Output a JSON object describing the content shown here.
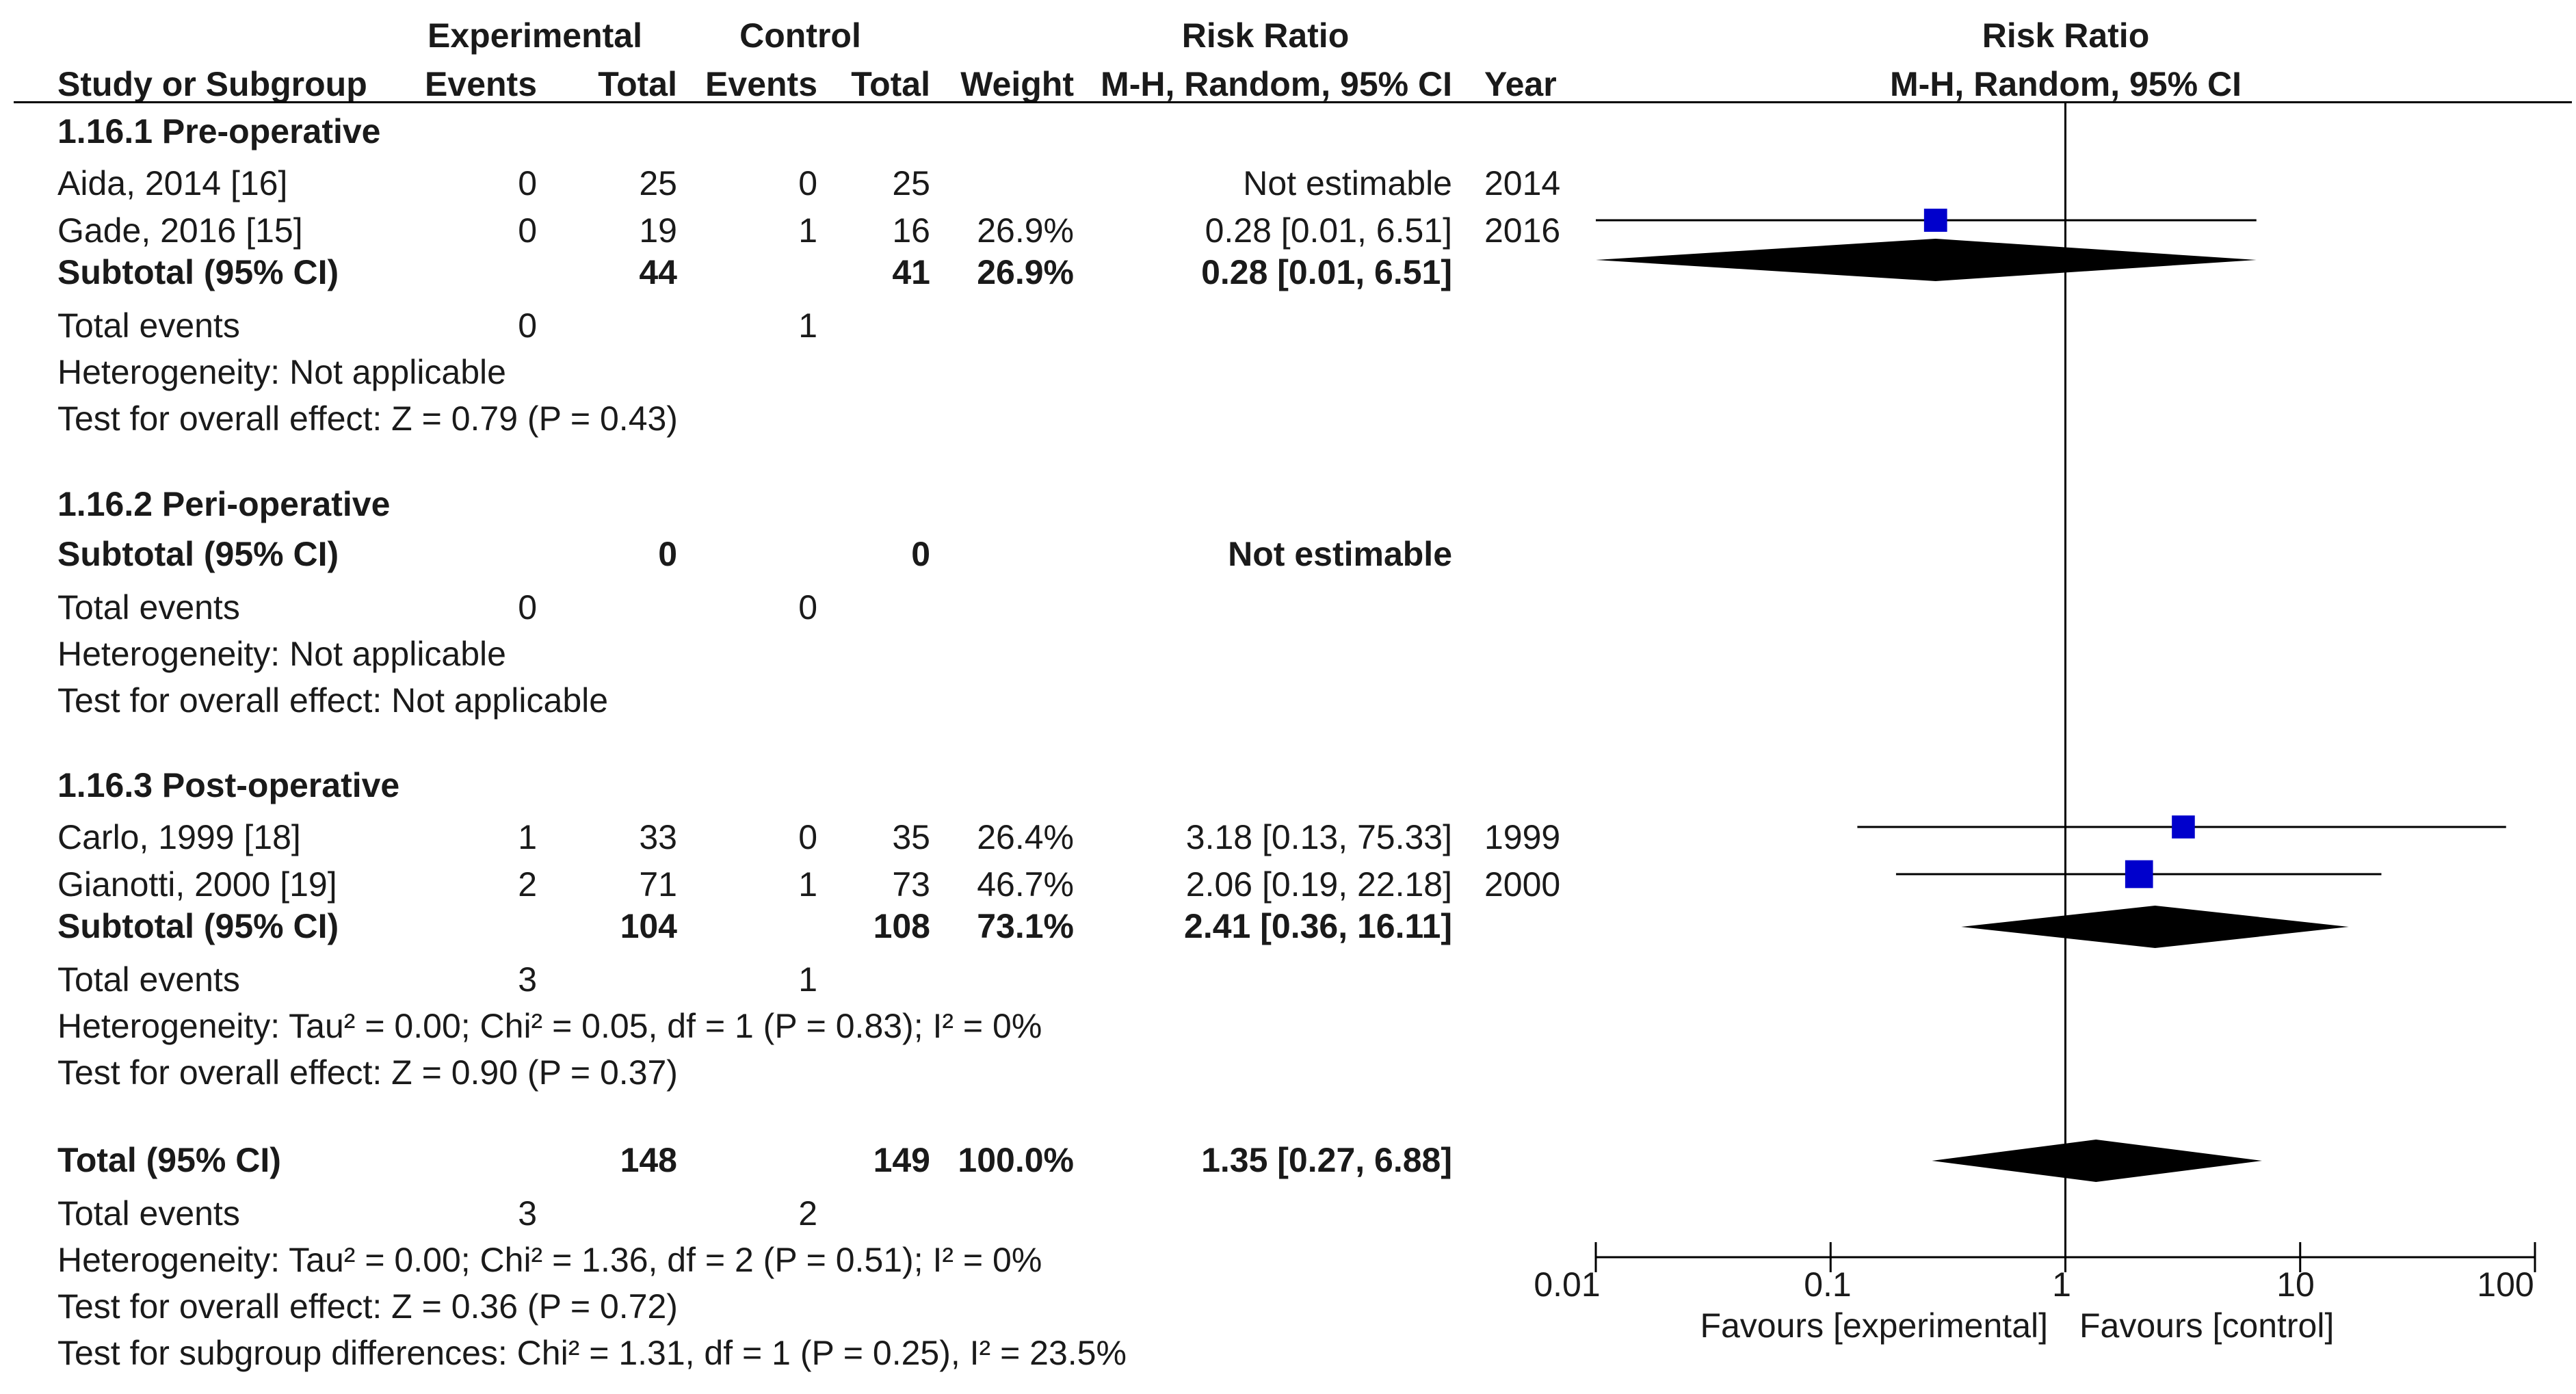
{
  "columns": {
    "group_experimental": "Experimental",
    "group_control": "Control",
    "group_riskratio": "Risk Ratio",
    "study": "Study or Subgroup",
    "exp_events": "Events",
    "exp_total": "Total",
    "ctl_events": "Events",
    "ctl_total": "Total",
    "weight": "Weight",
    "method": "M-H, Random, 95% CI",
    "year": "Year",
    "plot_title": "Risk Ratio",
    "plot_method": "M-H, Random, 95% CI"
  },
  "subgroups": [
    {
      "title": "1.16.1 Pre-operative",
      "studies": [
        {
          "name": "Aida, 2014 [16]",
          "exp_events": "0",
          "exp_total": "25",
          "ctl_events": "0",
          "ctl_total": "25",
          "weight": "",
          "ci_text": "Not estimable",
          "year": "2014"
        },
        {
          "name": "Gade, 2016 [15]",
          "exp_events": "0",
          "exp_total": "19",
          "ctl_events": "1",
          "ctl_total": "16",
          "weight": "26.9%",
          "ci_text": "0.28 [0.01, 6.51]",
          "year": "2016"
        }
      ],
      "subtotal": {
        "label": "Subtotal (95% CI)",
        "exp_total": "44",
        "ctl_total": "41",
        "weight": "26.9%",
        "ci_text": "0.28 [0.01, 6.51]"
      },
      "total_events": {
        "label": "Total events",
        "exp": "0",
        "ctl": "1"
      },
      "heterogeneity": "Heterogeneity: Not applicable",
      "overall": "Test for overall effect: Z = 0.79 (P = 0.43)"
    },
    {
      "title": "1.16.2 Peri-operative",
      "studies": [],
      "subtotal": {
        "label": "Subtotal (95% CI)",
        "exp_total": "0",
        "ctl_total": "0",
        "weight": "",
        "ci_text": "Not estimable"
      },
      "total_events": {
        "label": "Total events",
        "exp": "0",
        "ctl": "0"
      },
      "heterogeneity": "Heterogeneity: Not applicable",
      "overall": "Test for overall effect: Not applicable"
    },
    {
      "title": "1.16.3 Post-operative",
      "studies": [
        {
          "name": "Carlo, 1999 [18]",
          "exp_events": "1",
          "exp_total": "33",
          "ctl_events": "0",
          "ctl_total": "35",
          "weight": "26.4%",
          "ci_text": "3.18 [0.13, 75.33]",
          "year": "1999"
        },
        {
          "name": "Gianotti, 2000 [19]",
          "exp_events": "2",
          "exp_total": "71",
          "ctl_events": "1",
          "ctl_total": "73",
          "weight": "46.7%",
          "ci_text": "2.06 [0.19, 22.18]",
          "year": "2000"
        }
      ],
      "subtotal": {
        "label": "Subtotal (95% CI)",
        "exp_total": "104",
        "ctl_total": "108",
        "weight": "73.1%",
        "ci_text": "2.41 [0.36, 16.11]"
      },
      "total_events": {
        "label": "Total events",
        "exp": "3",
        "ctl": "1"
      },
      "heterogeneity": "Heterogeneity: Tau² = 0.00; Chi² = 0.05, df = 1 (P = 0.83); I² = 0%",
      "overall": "Test for overall effect: Z = 0.90 (P = 0.37)"
    }
  ],
  "total": {
    "label": "Total (95% CI)",
    "exp_total": "148",
    "ctl_total": "149",
    "weight": "100.0%",
    "ci_text": "1.35 [0.27, 6.88]",
    "total_events": {
      "label": "Total events",
      "exp": "3",
      "ctl": "2"
    },
    "heterogeneity": "Heterogeneity: Tau² = 0.00; Chi² = 1.36, df = 2 (P = 0.51); I² = 0%",
    "overall": "Test for overall effect: Z = 0.36 (P = 0.72)",
    "subgroup_diff": "Test for subgroup differences: Chi² = 1.31, df = 1 (P = 0.25), I² = 23.5%"
  },
  "axis": {
    "ticks": [
      "0.01",
      "0.1",
      "1",
      "10",
      "100"
    ],
    "favours_left": "Favours [experimental]",
    "favours_right": "Favours [control]"
  },
  "colors": {
    "marker": "#0000cc",
    "diamond": "#000000",
    "line": "#000000"
  },
  "chart_data": {
    "type": "scatter",
    "title": "Risk Ratio",
    "subtitle": "M-H, Random, 95% CI",
    "x_scale": "log",
    "xlim": [
      0.01,
      100
    ],
    "xlabel": "Favours [experimental]   Favours [control]",
    "ticks": [
      0.01,
      0.1,
      1,
      10,
      100
    ],
    "reference_line": 1,
    "studies": [
      {
        "name": "Gade, 2016 [15]",
        "rr": 0.28,
        "lo": 0.01,
        "hi": 6.51,
        "weight": 26.9
      },
      {
        "name": "Carlo, 1999 [18]",
        "rr": 3.18,
        "lo": 0.13,
        "hi": 75.33,
        "weight": 26.4
      },
      {
        "name": "Gianotti, 2000 [19]",
        "rr": 2.06,
        "lo": 0.19,
        "hi": 22.18,
        "weight": 46.7
      }
    ],
    "diamonds": [
      {
        "name": "Subtotal 1.16.1 Pre-operative",
        "rr": 0.28,
        "lo": 0.01,
        "hi": 6.51
      },
      {
        "name": "Subtotal 1.16.3 Post-operative",
        "rr": 2.41,
        "lo": 0.36,
        "hi": 16.11
      },
      {
        "name": "Total (95% CI)",
        "rr": 1.35,
        "lo": 0.27,
        "hi": 6.88
      }
    ]
  }
}
